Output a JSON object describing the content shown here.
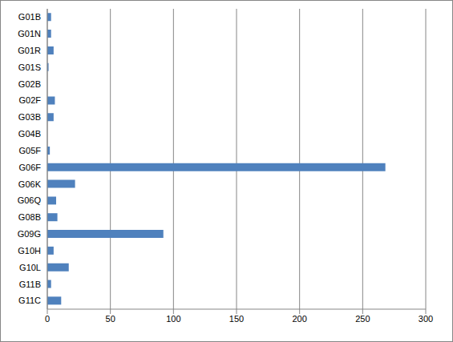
{
  "chart_data": {
    "type": "bar",
    "orientation": "horizontal",
    "categories": [
      "G01B",
      "G01N",
      "G01R",
      "G01S",
      "G02B",
      "G02F",
      "G03B",
      "G04B",
      "G05F",
      "G06F",
      "G06K",
      "G06Q",
      "G08B",
      "G09G",
      "G10H",
      "G10L",
      "G11B",
      "G11C"
    ],
    "values": [
      3,
      3,
      5,
      1,
      0,
      6,
      5,
      0,
      2,
      268,
      22,
      7,
      8,
      92,
      5,
      17,
      3,
      11
    ],
    "color": "#4f81bd",
    "xlim": [
      0,
      300
    ],
    "xticks": [
      0,
      50,
      100,
      150,
      200,
      250,
      300
    ],
    "grid": true
  }
}
